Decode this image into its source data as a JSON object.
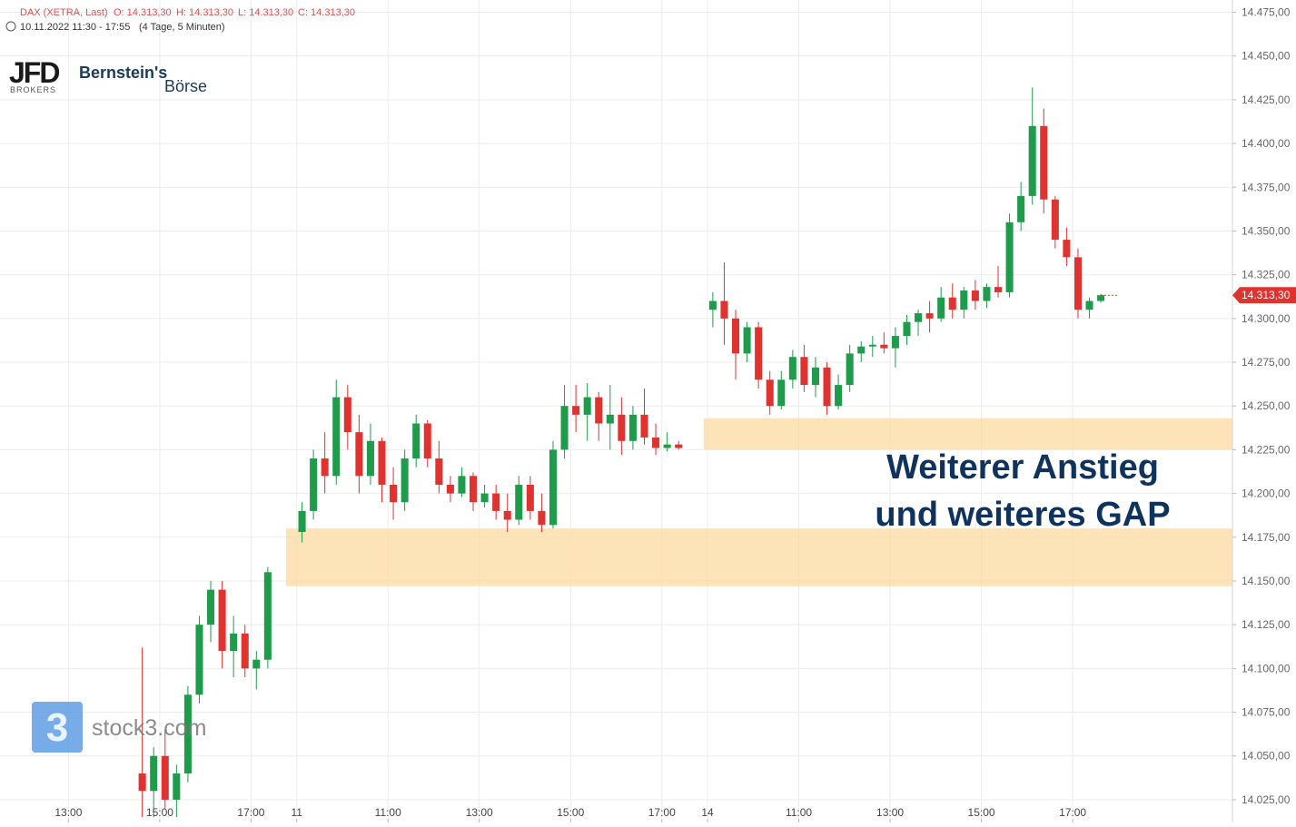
{
  "header": {
    "instrument": "DAX (XETRA, Last)",
    "open": "O: 14.313,30",
    "high": "H: 14.313,30",
    "low": "L: 14.313,30",
    "close": "C: 14.313,30",
    "range": "10.11.2022 11:30 - 17:55",
    "interval": "(4 Tage, 5 Minuten)"
  },
  "logos": {
    "broker": "JFD",
    "broker_sub": "BROKERS",
    "partner": "Bernstein's",
    "partner_sub": "Börse",
    "watermark": "stock3.com"
  },
  "chart_data": {
    "type": "candlestick",
    "annotation": [
      "Weiterer Anstieg",
      "und weiteres GAP"
    ],
    "up_color": "#1e9b4b",
    "down_color": "#e0322f",
    "grid": true,
    "xlim": [
      0,
      1620
    ],
    "ylim": [
      14012,
      14482
    ],
    "xticks": [
      {
        "value": 90,
        "label": "13:00"
      },
      {
        "value": 210,
        "label": "15:00"
      },
      {
        "value": 330,
        "label": "17:00"
      },
      {
        "value": 390,
        "label": "11"
      },
      {
        "value": 510,
        "label": "11:00"
      },
      {
        "value": 630,
        "label": "13:00"
      },
      {
        "value": 750,
        "label": "15:00"
      },
      {
        "value": 870,
        "label": "17:00"
      },
      {
        "value": 930,
        "label": "14"
      },
      {
        "value": 1050,
        "label": "11:00"
      },
      {
        "value": 1170,
        "label": "13:00"
      },
      {
        "value": 1290,
        "label": "15:00"
      },
      {
        "value": 1410,
        "label": "17:00"
      }
    ],
    "yticks": [
      {
        "value": 14025,
        "label": "14.025,00"
      },
      {
        "value": 14050,
        "label": "14.050,00"
      },
      {
        "value": 14075,
        "label": "14.075,00"
      },
      {
        "value": 14100,
        "label": "14.100,00"
      },
      {
        "value": 14125,
        "label": "14.125,00"
      },
      {
        "value": 14150,
        "label": "14.150,00"
      },
      {
        "value": 14175,
        "label": "14.175,00"
      },
      {
        "value": 14200,
        "label": "14.200,00"
      },
      {
        "value": 14225,
        "label": "14.225,00"
      },
      {
        "value": 14250,
        "label": "14.250,00"
      },
      {
        "value": 14275,
        "label": "14.275,00"
      },
      {
        "value": 14300,
        "label": "14.300,00"
      },
      {
        "value": 14325,
        "label": "14.325,00"
      },
      {
        "value": 14350,
        "label": "14.350,00"
      },
      {
        "value": 14375,
        "label": "14.375,00"
      },
      {
        "value": 14400,
        "label": "14.400,00"
      },
      {
        "value": 14425,
        "label": "14.425,00"
      },
      {
        "value": 14450,
        "label": "14.450,00"
      },
      {
        "value": 14475,
        "label": "14.475,00"
      }
    ],
    "last_price": {
      "value": 14313.3,
      "label": "14.313,30"
    },
    "gaps": [
      {
        "start": 376,
        "low": 14147,
        "high": 14180
      },
      {
        "start": 925,
        "low": 14225,
        "high": 14243
      }
    ],
    "x": [
      187,
      202,
      217,
      232,
      247,
      262,
      277,
      292,
      307,
      322,
      337,
      352,
      397,
      412,
      427,
      442,
      457,
      472,
      487,
      502,
      517,
      532,
      547,
      562,
      577,
      592,
      607,
      622,
      637,
      652,
      667,
      682,
      697,
      712,
      727,
      742,
      757,
      772,
      787,
      802,
      817,
      832,
      847,
      862,
      877,
      892,
      937,
      952,
      967,
      982,
      997,
      1012,
      1027,
      1042,
      1057,
      1072,
      1087,
      1102,
      1117,
      1132,
      1147,
      1162,
      1177,
      1192,
      1207,
      1222,
      1237,
      1252,
      1267,
      1282,
      1297,
      1312,
      1327,
      1342,
      1357,
      1372,
      1387,
      1402,
      1417,
      1432,
      1447
    ],
    "open": [
      14040,
      14030,
      14050,
      14025,
      14040,
      14085,
      14125,
      14145,
      14110,
      14120,
      14100,
      14105,
      14178,
      14190,
      14220,
      14210,
      14255,
      14235,
      14210,
      14230,
      14205,
      14195,
      14220,
      14240,
      14220,
      14205,
      14200,
      14210,
      14195,
      14200,
      14190,
      14185,
      14205,
      14190,
      14182,
      14225,
      14250,
      14245,
      14255,
      14240,
      14245,
      14230,
      14245,
      14232,
      14226,
      14228,
      14305,
      14310,
      14300,
      14280,
      14295,
      14265,
      14250,
      14265,
      14278,
      14262,
      14272,
      14250,
      14262,
      14280,
      14284,
      14285,
      14283,
      14290,
      14298,
      14303,
      14300,
      14312,
      14305,
      14316,
      14310,
      14318,
      14315,
      14355,
      14370,
      14410,
      14368,
      14345,
      14335,
      14305,
      14310
    ],
    "high": [
      14112,
      14055,
      14065,
      14045,
      14090,
      14130,
      14150,
      14150,
      14130,
      14125,
      14110,
      14158,
      14195,
      14225,
      14235,
      14265,
      14262,
      14245,
      14240,
      14232,
      14215,
      14225,
      14245,
      14242,
      14230,
      14210,
      14215,
      14212,
      14205,
      14205,
      14200,
      14210,
      14210,
      14200,
      14230,
      14262,
      14262,
      14263,
      14258,
      14262,
      14255,
      14250,
      14260,
      14240,
      14235,
      14230,
      14315,
      14332,
      14305,
      14298,
      14298,
      14270,
      14270,
      14282,
      14285,
      14278,
      14275,
      14268,
      14285,
      14287,
      14290,
      14292,
      14295,
      14302,
      14305,
      14310,
      14318,
      14320,
      14318,
      14322,
      14320,
      14330,
      14360,
      14378,
      14432,
      14420,
      14370,
      14352,
      14340,
      14312,
      14314
    ],
    "low": [
      14015,
      14015,
      14020,
      14015,
      14035,
      14080,
      14115,
      14100,
      14095,
      14095,
      14088,
      14100,
      14172,
      14185,
      14200,
      14205,
      14225,
      14200,
      14205,
      14195,
      14185,
      14190,
      14215,
      14215,
      14200,
      14195,
      14198,
      14190,
      14192,
      14185,
      14178,
      14182,
      14185,
      14178,
      14180,
      14220,
      14235,
      14230,
      14230,
      14225,
      14222,
      14225,
      14228,
      14222,
      14224,
      14225,
      14295,
      14285,
      14265,
      14275,
      14260,
      14245,
      14248,
      14260,
      14258,
      14255,
      14245,
      14248,
      14258,
      14275,
      14278,
      14280,
      14272,
      14285,
      14290,
      14292,
      14298,
      14300,
      14300,
      14305,
      14306,
      14312,
      14312,
      14350,
      14365,
      14360,
      14340,
      14330,
      14300,
      14300,
      14309
    ],
    "close": [
      14030,
      14050,
      14025,
      14040,
      14085,
      14125,
      14145,
      14110,
      14120,
      14100,
      14105,
      14155,
      14190,
      14220,
      14210,
      14255,
      14235,
      14210,
      14230,
      14205,
      14195,
      14220,
      14240,
      14220,
      14205,
      14200,
      14210,
      14195,
      14200,
      14190,
      14185,
      14205,
      14190,
      14182,
      14225,
      14250,
      14245,
      14255,
      14240,
      14245,
      14230,
      14245,
      14232,
      14226,
      14228,
      14226,
      14310,
      14300,
      14280,
      14295,
      14265,
      14250,
      14265,
      14278,
      14262,
      14272,
      14250,
      14262,
      14280,
      14284,
      14285,
      14283,
      14290,
      14298,
      14303,
      14300,
      14312,
      14305,
      14316,
      14310,
      14318,
      14315,
      14355,
      14370,
      14410,
      14368,
      14345,
      14335,
      14305,
      14310,
      14313.3
    ]
  }
}
